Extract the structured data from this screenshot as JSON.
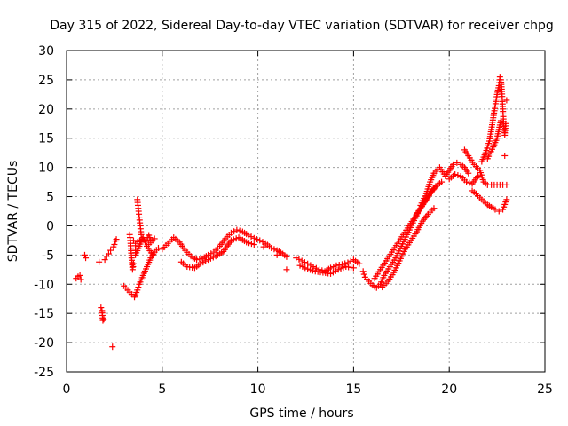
{
  "chart_data": {
    "type": "scatter",
    "title": "Day 315 of 2022, Sidereal Day-to-day VTEC variation (SDTVAR) for receiver chpg",
    "xlabel": "GPS time / hours",
    "ylabel": "SDTVAR / TECUs",
    "xlim": [
      0,
      25
    ],
    "ylim": [
      -25,
      30
    ],
    "xticks": [
      0,
      5,
      10,
      15,
      20,
      25
    ],
    "yticks": [
      -25,
      -20,
      -15,
      -10,
      -5,
      0,
      5,
      10,
      15,
      20,
      25,
      30
    ],
    "grid": true,
    "marker": "+",
    "colors": {
      "series": "#ff0000",
      "grid": "#a0a0a0",
      "axes": "#000000"
    },
    "series": [
      {
        "name": "SDTVAR",
        "points": [
          [
            0.5,
            -9.0
          ],
          [
            0.6,
            -8.7
          ],
          [
            0.7,
            -8.5
          ],
          [
            0.75,
            -9.2
          ],
          [
            0.95,
            -5.0
          ],
          [
            1.0,
            -5.5
          ],
          [
            1.7,
            -6.2
          ],
          [
            1.8,
            -14.0
          ],
          [
            1.85,
            -14.5
          ],
          [
            1.9,
            -16.2
          ],
          [
            1.95,
            -16.0
          ],
          [
            2.0,
            -5.8
          ],
          [
            2.1,
            -5.2
          ],
          [
            2.2,
            -4.8
          ],
          [
            2.3,
            -4.2
          ],
          [
            2.4,
            -20.7
          ],
          [
            2.45,
            -3.6
          ],
          [
            2.5,
            -3.2
          ],
          [
            2.55,
            -2.6
          ],
          [
            2.6,
            -2.3
          ],
          [
            3.0,
            -10.3
          ],
          [
            3.2,
            -11.0
          ],
          [
            3.4,
            -11.7
          ],
          [
            3.55,
            -12.2
          ],
          [
            3.7,
            -11.0
          ],
          [
            3.8,
            -10.0
          ],
          [
            4.0,
            -8.5
          ],
          [
            4.2,
            -7.0
          ],
          [
            4.4,
            -5.5
          ],
          [
            4.6,
            -4.5
          ],
          [
            4.8,
            -3.8
          ],
          [
            3.3,
            -1.5
          ],
          [
            3.35,
            -3.0
          ],
          [
            3.4,
            -5.5
          ],
          [
            3.45,
            -7.5
          ],
          [
            3.5,
            -6.5
          ],
          [
            3.5,
            -2.5
          ],
          [
            3.7,
            4.5
          ],
          [
            3.75,
            3.0
          ],
          [
            3.8,
            1.5
          ],
          [
            3.85,
            0.0
          ],
          [
            3.9,
            -1.5
          ],
          [
            3.95,
            -2.2
          ],
          [
            3.6,
            -3.0
          ],
          [
            3.6,
            -5.0
          ],
          [
            4.0,
            -2.0
          ],
          [
            4.1,
            -2.8
          ],
          [
            4.3,
            -1.6
          ],
          [
            4.4,
            -2.4
          ],
          [
            4.6,
            -2.2
          ],
          [
            4.2,
            -3.5
          ],
          [
            4.5,
            -5.0
          ],
          [
            5.0,
            -4.0
          ],
          [
            5.3,
            -3.0
          ],
          [
            5.6,
            -2.0
          ],
          [
            5.9,
            -2.8
          ],
          [
            6.2,
            -4.2
          ],
          [
            6.5,
            -5.2
          ],
          [
            6.8,
            -5.8
          ],
          [
            7.1,
            -5.6
          ],
          [
            7.4,
            -5.0
          ],
          [
            7.7,
            -4.5
          ],
          [
            8.0,
            -3.5
          ],
          [
            8.3,
            -2.2
          ],
          [
            8.6,
            -1.2
          ],
          [
            8.9,
            -0.7
          ],
          [
            9.2,
            -1.0
          ],
          [
            9.5,
            -1.6
          ],
          [
            9.8,
            -2.1
          ],
          [
            10.1,
            -2.5
          ],
          [
            10.4,
            -3.0
          ],
          [
            10.7,
            -3.8
          ],
          [
            11.0,
            -4.2
          ],
          [
            11.3,
            -4.8
          ],
          [
            11.5,
            -5.3
          ],
          [
            6.0,
            -6.2
          ],
          [
            6.3,
            -7.0
          ],
          [
            6.7,
            -7.2
          ],
          [
            7.0,
            -6.5
          ],
          [
            7.4,
            -5.8
          ],
          [
            7.8,
            -5.2
          ],
          [
            8.2,
            -4.4
          ],
          [
            8.6,
            -2.5
          ],
          [
            9.0,
            -2.0
          ],
          [
            9.4,
            -2.8
          ],
          [
            9.8,
            -3.2
          ],
          [
            10.3,
            -3.6
          ],
          [
            11.0,
            -5.0
          ],
          [
            11.5,
            -7.5
          ],
          [
            12.0,
            -5.5
          ],
          [
            12.3,
            -6.0
          ],
          [
            12.6,
            -6.5
          ],
          [
            12.9,
            -7.0
          ],
          [
            13.2,
            -7.5
          ],
          [
            13.5,
            -7.8
          ],
          [
            13.8,
            -7.2
          ],
          [
            14.1,
            -6.8
          ],
          [
            14.4,
            -6.6
          ],
          [
            14.7,
            -6.3
          ],
          [
            15.0,
            -5.8
          ],
          [
            15.3,
            -6.5
          ],
          [
            12.2,
            -6.8
          ],
          [
            12.6,
            -7.4
          ],
          [
            13.0,
            -7.8
          ],
          [
            13.4,
            -8.0
          ],
          [
            13.8,
            -8.2
          ],
          [
            14.2,
            -7.5
          ],
          [
            14.6,
            -7.0
          ],
          [
            15.0,
            -7.2
          ],
          [
            15.5,
            -7.8
          ],
          [
            15.6,
            -8.8
          ],
          [
            15.8,
            -9.5
          ],
          [
            16.0,
            -10.2
          ],
          [
            16.2,
            -10.6
          ],
          [
            16.4,
            -10.0
          ],
          [
            16.6,
            -8.5
          ],
          [
            16.9,
            -7.0
          ],
          [
            17.2,
            -5.5
          ],
          [
            17.5,
            -3.5
          ],
          [
            17.8,
            -1.5
          ],
          [
            18.1,
            0.5
          ],
          [
            18.4,
            2.5
          ],
          [
            18.7,
            4.0
          ],
          [
            19.0,
            5.5
          ],
          [
            19.3,
            6.8
          ],
          [
            19.6,
            7.5
          ],
          [
            16.1,
            -9.0
          ],
          [
            16.4,
            -7.5
          ],
          [
            16.7,
            -6.0
          ],
          [
            17.0,
            -4.5
          ],
          [
            17.3,
            -3.0
          ],
          [
            17.6,
            -1.5
          ],
          [
            17.9,
            0.0
          ],
          [
            18.2,
            1.5
          ],
          [
            18.5,
            3.0
          ],
          [
            18.8,
            4.5
          ],
          [
            19.1,
            6.0
          ],
          [
            19.4,
            7.0
          ],
          [
            16.5,
            -10.5
          ],
          [
            16.8,
            -9.5
          ],
          [
            17.1,
            -8.0
          ],
          [
            17.4,
            -6.0
          ],
          [
            17.7,
            -4.0
          ],
          [
            18.0,
            -2.5
          ],
          [
            18.3,
            -1.0
          ],
          [
            18.6,
            0.8
          ],
          [
            18.9,
            2.0
          ],
          [
            19.2,
            3.0
          ],
          [
            18.5,
            3.5
          ],
          [
            18.8,
            5.5
          ],
          [
            19.0,
            7.5
          ],
          [
            19.2,
            9.0
          ],
          [
            19.5,
            10.0
          ],
          [
            19.8,
            8.5
          ],
          [
            20.0,
            9.5
          ],
          [
            20.2,
            10.5
          ],
          [
            20.4,
            10.8
          ],
          [
            20.6,
            10.5
          ],
          [
            20.8,
            10.0
          ],
          [
            21.0,
            9.0
          ],
          [
            20.0,
            8.0
          ],
          [
            20.3,
            8.8
          ],
          [
            20.6,
            8.5
          ],
          [
            20.9,
            7.5
          ],
          [
            21.2,
            7.2
          ],
          [
            21.5,
            8.5
          ],
          [
            20.8,
            13.0
          ],
          [
            21.0,
            12.0
          ],
          [
            21.3,
            10.5
          ],
          [
            21.6,
            9.5
          ],
          [
            21.8,
            7.5
          ],
          [
            22.0,
            7.0
          ],
          [
            22.2,
            7.0
          ],
          [
            22.5,
            7.0
          ],
          [
            22.8,
            7.0
          ],
          [
            23.0,
            7.0
          ],
          [
            21.2,
            6.0
          ],
          [
            21.4,
            5.5
          ],
          [
            21.6,
            4.8
          ],
          [
            21.8,
            4.2
          ],
          [
            22.0,
            3.6
          ],
          [
            22.2,
            3.2
          ],
          [
            22.4,
            2.8
          ],
          [
            22.6,
            2.5
          ],
          [
            22.8,
            2.8
          ],
          [
            23.0,
            4.5
          ],
          [
            21.7,
            11.0
          ],
          [
            21.9,
            12.5
          ],
          [
            22.1,
            14.5
          ],
          [
            22.2,
            16.5
          ],
          [
            22.3,
            18.5
          ],
          [
            22.4,
            20.5
          ],
          [
            22.5,
            22.5
          ],
          [
            22.6,
            24.0
          ],
          [
            22.65,
            25.5
          ],
          [
            22.7,
            25.0
          ],
          [
            22.75,
            23.0
          ],
          [
            22.8,
            20.0
          ],
          [
            22.85,
            17.0
          ],
          [
            22.9,
            15.5
          ],
          [
            22.95,
            17.5
          ],
          [
            23.0,
            21.5
          ],
          [
            22.0,
            11.5
          ],
          [
            22.3,
            13.5
          ],
          [
            22.5,
            15.0
          ],
          [
            22.7,
            18.0
          ],
          [
            22.9,
            12.0
          ]
        ]
      }
    ]
  }
}
